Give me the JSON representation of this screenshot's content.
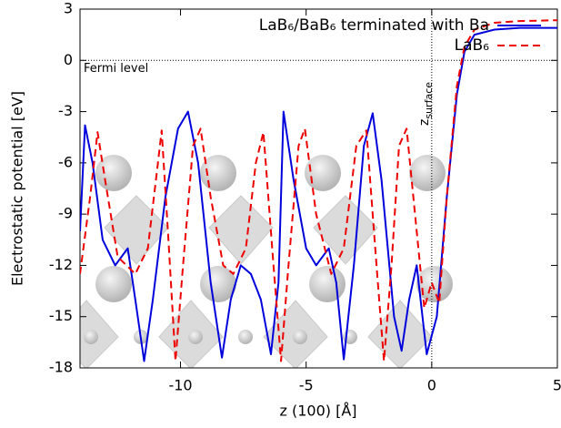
{
  "chart_data": {
    "type": "line",
    "xlabel": "z (100) [Å]",
    "ylabel": "Electrostatic potential [eV]",
    "xlim": [
      -14,
      5
    ],
    "ylim": [
      -18,
      3
    ],
    "xticks": [
      -10,
      -5,
      0,
      5
    ],
    "yticks": [
      3,
      0,
      -3,
      -6,
      -9,
      -12,
      -15,
      -18
    ],
    "hline": 0,
    "vline": 0,
    "hline_label": "Fermi level",
    "vline_label": {
      "main": "z",
      "sub": "surface"
    },
    "legend": "upper right",
    "series": [
      {
        "name": "LaB₆/BaB₆ terminated with Ba",
        "color": "#0000dd",
        "dash": "none",
        "x": [
          -14,
          -13.8,
          -13.5,
          -13.1,
          -12.6,
          -12.1,
          -11.8,
          -11.45,
          -11.1,
          -10.6,
          -10.1,
          -9.7,
          -9.3,
          -8.8,
          -8.35,
          -8.0,
          -7.6,
          -7.2,
          -6.8,
          -6.4,
          -6.1,
          -5.9,
          -5.5,
          -5.0,
          -4.6,
          -4.1,
          -3.8,
          -3.5,
          -3.1,
          -2.7,
          -2.35,
          -2.0,
          -1.5,
          -1.2,
          -0.9,
          -0.6,
          -0.2,
          0.2,
          0.6,
          1.0,
          1.3,
          1.7,
          2.5,
          3.5,
          5
        ],
        "values": [
          -10,
          -3.8,
          -6,
          -10.5,
          -12,
          -11,
          -14,
          -17.6,
          -14,
          -8,
          -4,
          -3,
          -6,
          -13,
          -17.4,
          -14,
          -12,
          -12.5,
          -14,
          -17.2,
          -13,
          -3,
          -7,
          -11,
          -12,
          -11,
          -13,
          -17.5,
          -12,
          -5,
          -3.1,
          -7,
          -15,
          -17,
          -14,
          -12,
          -17.2,
          -15,
          -8,
          -2,
          0.5,
          1.5,
          1.8,
          1.9,
          1.9
        ]
      },
      {
        "name": "LaB₆",
        "color": "#ee0000",
        "dash": "8,5",
        "x": [
          -14,
          -13.6,
          -13.3,
          -13.0,
          -12.5,
          -11.8,
          -11.3,
          -10.9,
          -10.75,
          -10.5,
          -10.2,
          -9.9,
          -9.5,
          -9.2,
          -8.8,
          -8.3,
          -7.9,
          -7.4,
          -7.0,
          -6.7,
          -6.3,
          -6.0,
          -5.7,
          -5.3,
          -5.05,
          -4.6,
          -4.0,
          -3.5,
          -3.0,
          -2.6,
          -2.2,
          -1.9,
          -1.6,
          -1.3,
          -1.0,
          -0.6,
          -0.3,
          0,
          0.3,
          0.6,
          1.0,
          1.3,
          1.7,
          2.5,
          3.5,
          5
        ],
        "values": [
          -12.5,
          -8,
          -4.2,
          -7,
          -11.5,
          -12.5,
          -11,
          -6,
          -4.1,
          -10,
          -17.6,
          -12,
          -5,
          -4,
          -8,
          -12,
          -12.5,
          -11,
          -6,
          -4.2,
          -12,
          -17.6,
          -12,
          -5,
          -4,
          -9,
          -12.5,
          -11,
          -5,
          -4.1,
          -12,
          -17.6,
          -12,
          -5,
          -4,
          -10,
          -14.5,
          -13,
          -14.2,
          -8,
          -1.5,
          0.8,
          1.8,
          2.2,
          2.3,
          2.35
        ]
      }
    ]
  }
}
